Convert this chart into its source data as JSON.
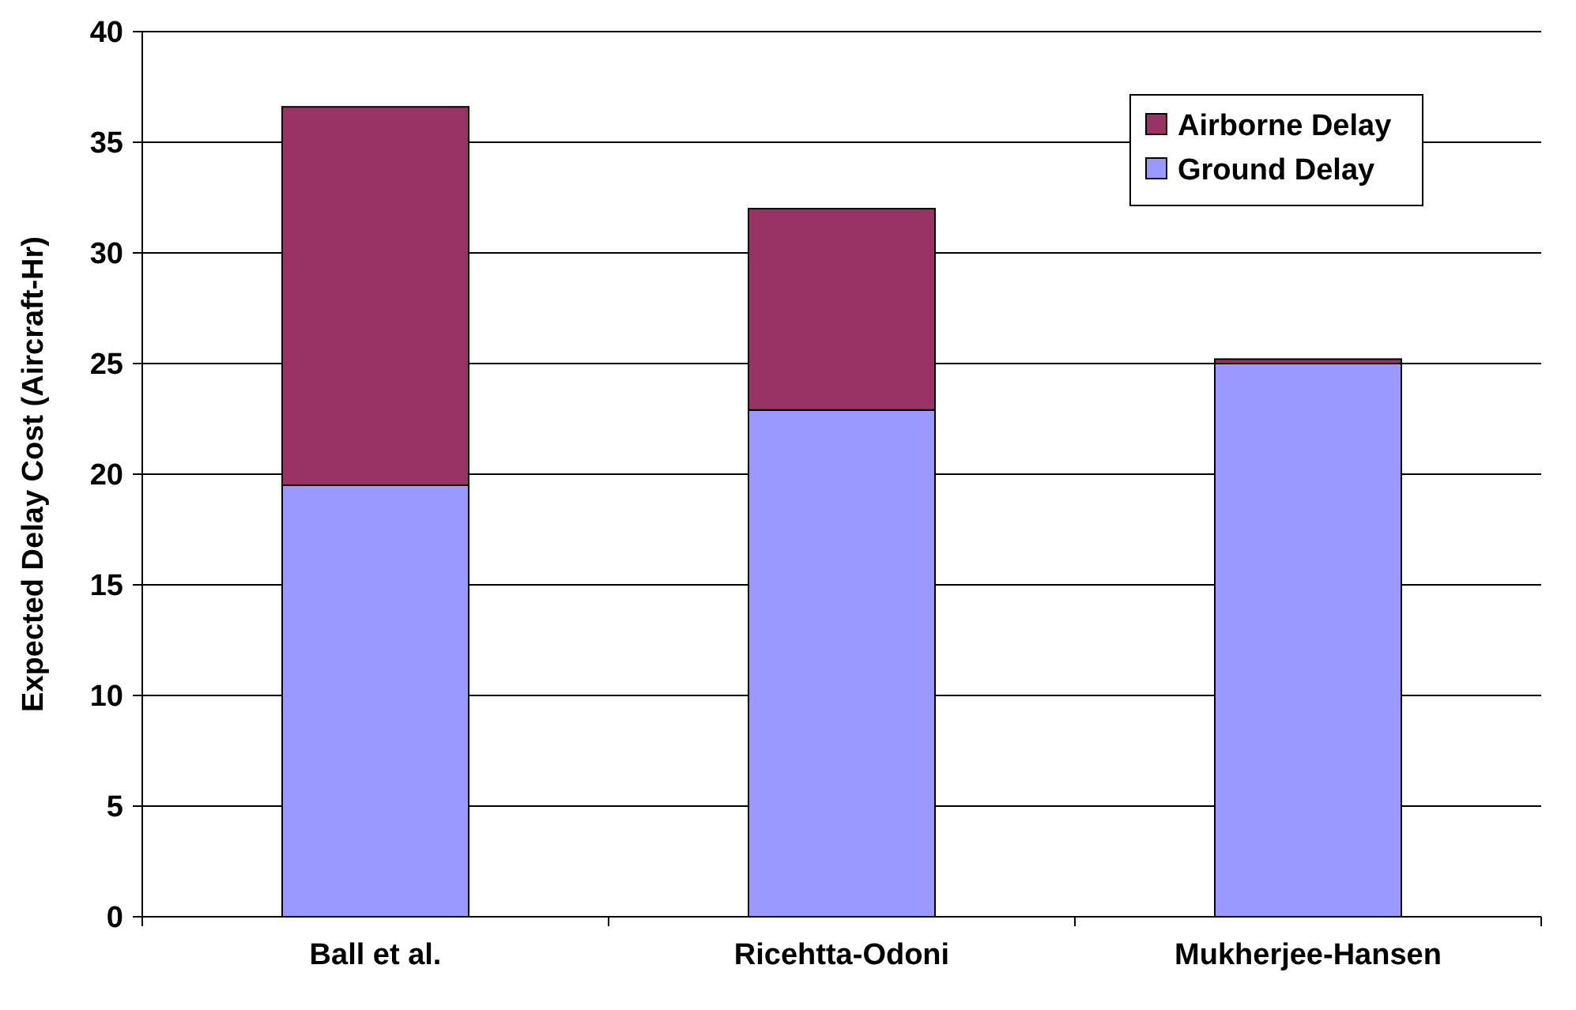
{
  "chart_data": {
    "type": "bar",
    "ylabel": "Expected Delay Cost (Aircraft-Hr)",
    "categories": [
      "Ball et al.",
      "Ricehtta-Odoni",
      "Mukherjee-Hansen"
    ],
    "series": [
      {
        "name": "Ground Delay",
        "color": "#9999ff",
        "values": [
          19.5,
          22.9,
          25.0
        ]
      },
      {
        "name": "Airborne Delay",
        "color": "#993366",
        "values": [
          17.1,
          9.1,
          0.2
        ]
      }
    ],
    "stacked": true,
    "ylim": [
      0,
      40
    ],
    "yticks": [
      0,
      5,
      10,
      15,
      20,
      25,
      30,
      35,
      40
    ],
    "grid": "y",
    "legend": "top right"
  }
}
